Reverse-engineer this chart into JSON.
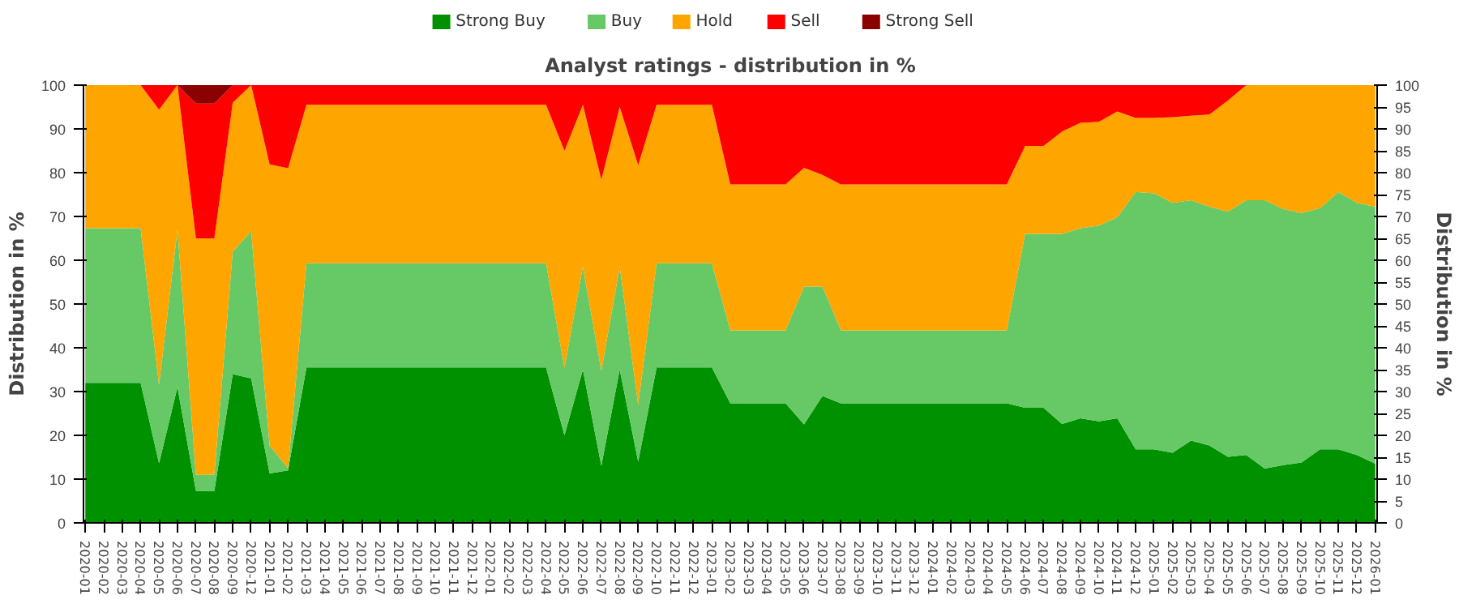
{
  "chart_data": {
    "type": "area",
    "stacked": true,
    "title": "Analyst ratings - distribution in %",
    "ylabel": "Distribution in %",
    "y2label": "Distribution in %",
    "categories": [
      "2020-01",
      "2020-02",
      "2020-03",
      "2020-04",
      "2020-05",
      "2020-06",
      "2020-07",
      "2020-08",
      "2020-09",
      "2020-12",
      "2021-01",
      "2021-02",
      "2021-03",
      "2021-04",
      "2021-05",
      "2021-06",
      "2021-07",
      "2021-08",
      "2021-09",
      "2021-10",
      "2021-11",
      "2021-12",
      "2022-01",
      "2022-02",
      "2022-03",
      "2022-04",
      "2022-05",
      "2022-06",
      "2022-07",
      "2022-08",
      "2022-09",
      "2022-10",
      "2022-11",
      "2022-12",
      "2023-01",
      "2023-02",
      "2023-03",
      "2023-04",
      "2023-05",
      "2023-06",
      "2023-07",
      "2023-08",
      "2023-09",
      "2023-10",
      "2023-11",
      "2023-12",
      "2024-01",
      "2024-02",
      "2024-03",
      "2024-04",
      "2024-05",
      "2024-06",
      "2024-07",
      "2024-08",
      "2024-09",
      "2024-10",
      "2024-11",
      "2024-12",
      "2025-01",
      "2025-02",
      "2025-03",
      "2025-04",
      "2025-05",
      "2025-06",
      "2025-07",
      "2025-08",
      "2025-09",
      "2025-10",
      "2025-11",
      "2025-12",
      "2026-01"
    ],
    "series": [
      {
        "name": "Strong Buy",
        "color": "#009100",
        "values": [
          32,
          32,
          32,
          32,
          13.6,
          31,
          7.3,
          7.3,
          34,
          33,
          11.3,
          12,
          35.5,
          35.5,
          35.5,
          35.5,
          35.5,
          35.5,
          35.5,
          35.5,
          35.5,
          35.5,
          35.5,
          35.5,
          35.5,
          35.5,
          20,
          35,
          13,
          35,
          14,
          35.5,
          35.5,
          35.5,
          35.5,
          27.3,
          27.3,
          27.3,
          27.3,
          22.5,
          29,
          27.3,
          27.3,
          27.3,
          27.3,
          27.3,
          27.3,
          27.3,
          27.3,
          27.3,
          27.3,
          26.3,
          26.3,
          22.6,
          23.9,
          23.2,
          23.9,
          16.8,
          16.8,
          16,
          18.8,
          17.7,
          15.1,
          15.5,
          12.4,
          13.2,
          13.8,
          16.8,
          16.8,
          15.5,
          13.5
        ]
      },
      {
        "name": "Buy",
        "color": "#66c966",
        "values": [
          35.3,
          35.3,
          35.3,
          35.3,
          17.9,
          36,
          3.7,
          3.7,
          28,
          33.6,
          6.4,
          0.5,
          23.8,
          23.8,
          23.8,
          23.8,
          23.8,
          23.8,
          23.8,
          23.8,
          23.8,
          23.8,
          23.8,
          23.8,
          23.8,
          23.8,
          15.4,
          23.5,
          21.7,
          23.5,
          13,
          23.8,
          23.8,
          23.8,
          23.8,
          16.7,
          16.7,
          16.7,
          16.7,
          31.5,
          25,
          16.7,
          16.7,
          16.7,
          16.7,
          16.7,
          16.7,
          16.7,
          16.7,
          16.7,
          16.7,
          39.7,
          39.7,
          43.4,
          43.4,
          44.7,
          45.9,
          58.8,
          58.5,
          57.1,
          54.9,
          54.5,
          56,
          58.2,
          61.3,
          58.5,
          57,
          55.1,
          58.8,
          57.6,
          58.7
        ]
      },
      {
        "name": "Hold",
        "color": "#ffa500",
        "values": [
          32.7,
          32.7,
          32.7,
          32.7,
          62.9,
          33,
          54,
          54,
          34,
          33.4,
          64.2,
          68.5,
          36.2,
          36.2,
          36.2,
          36.2,
          36.2,
          36.2,
          36.2,
          36.2,
          36.2,
          36.2,
          36.2,
          36.2,
          36.2,
          36.2,
          49.6,
          37,
          43.7,
          36.5,
          54.7,
          36.2,
          36.2,
          36.2,
          36.2,
          33.3,
          33.3,
          33.3,
          33.3,
          27.1,
          25.5,
          33.3,
          33.3,
          33.3,
          33.3,
          33.3,
          33.3,
          33.3,
          33.3,
          33.3,
          33.3,
          20.1,
          20.1,
          23.4,
          24.1,
          23.7,
          24.2,
          16.9,
          17.2,
          19.6,
          19.3,
          21.1,
          25.4,
          26.3,
          26.3,
          28.3,
          29.2,
          28.1,
          24.4,
          26.9,
          27.8
        ]
      },
      {
        "name": "Sell",
        "color": "#ff0000",
        "values": [
          0,
          0,
          0,
          0,
          5.6,
          0,
          30.8,
          30.8,
          4,
          0,
          18.1,
          19,
          4.5,
          4.5,
          4.5,
          4.5,
          4.5,
          4.5,
          4.5,
          4.5,
          4.5,
          4.5,
          4.5,
          4.5,
          4.5,
          4.5,
          15,
          4.5,
          21.6,
          5,
          18.3,
          4.5,
          4.5,
          4.5,
          4.5,
          22.7,
          22.7,
          22.7,
          22.7,
          18.9,
          20.5,
          22.7,
          22.7,
          22.7,
          22.7,
          22.7,
          22.7,
          22.7,
          22.7,
          22.7,
          22.7,
          13.9,
          13.9,
          10.6,
          8.6,
          8.4,
          6,
          7.5,
          7.5,
          7.3,
          7,
          6.7,
          3.5,
          0,
          0,
          0,
          0,
          0,
          0,
          0,
          0
        ]
      },
      {
        "name": "Strong Sell",
        "color": "#8b0000",
        "values": [
          0,
          0,
          0,
          0,
          0,
          0,
          4.2,
          4.2,
          0,
          0,
          0,
          0,
          0,
          0,
          0,
          0,
          0,
          0,
          0,
          0,
          0,
          0,
          0,
          0,
          0,
          0,
          0,
          0,
          0,
          0,
          0,
          0,
          0,
          0,
          0,
          0,
          0,
          0,
          0,
          0,
          0,
          0,
          0,
          0,
          0,
          0,
          0,
          0,
          0,
          0,
          0,
          0,
          0,
          0,
          0,
          0,
          0,
          0,
          0,
          0,
          0,
          0,
          0,
          0,
          0,
          0,
          0,
          0,
          0,
          0,
          0
        ]
      }
    ],
    "ylim": [
      0,
      100
    ],
    "yticks": [
      0,
      10,
      20,
      30,
      40,
      50,
      60,
      70,
      80,
      90,
      100
    ],
    "y2lim": [
      0,
      100
    ],
    "y2ticks": [
      0,
      5,
      10,
      15,
      20,
      25,
      30,
      35,
      40,
      45,
      50,
      55,
      60,
      65,
      70,
      75,
      80,
      85,
      90,
      95,
      100
    ],
    "legend": "top"
  }
}
